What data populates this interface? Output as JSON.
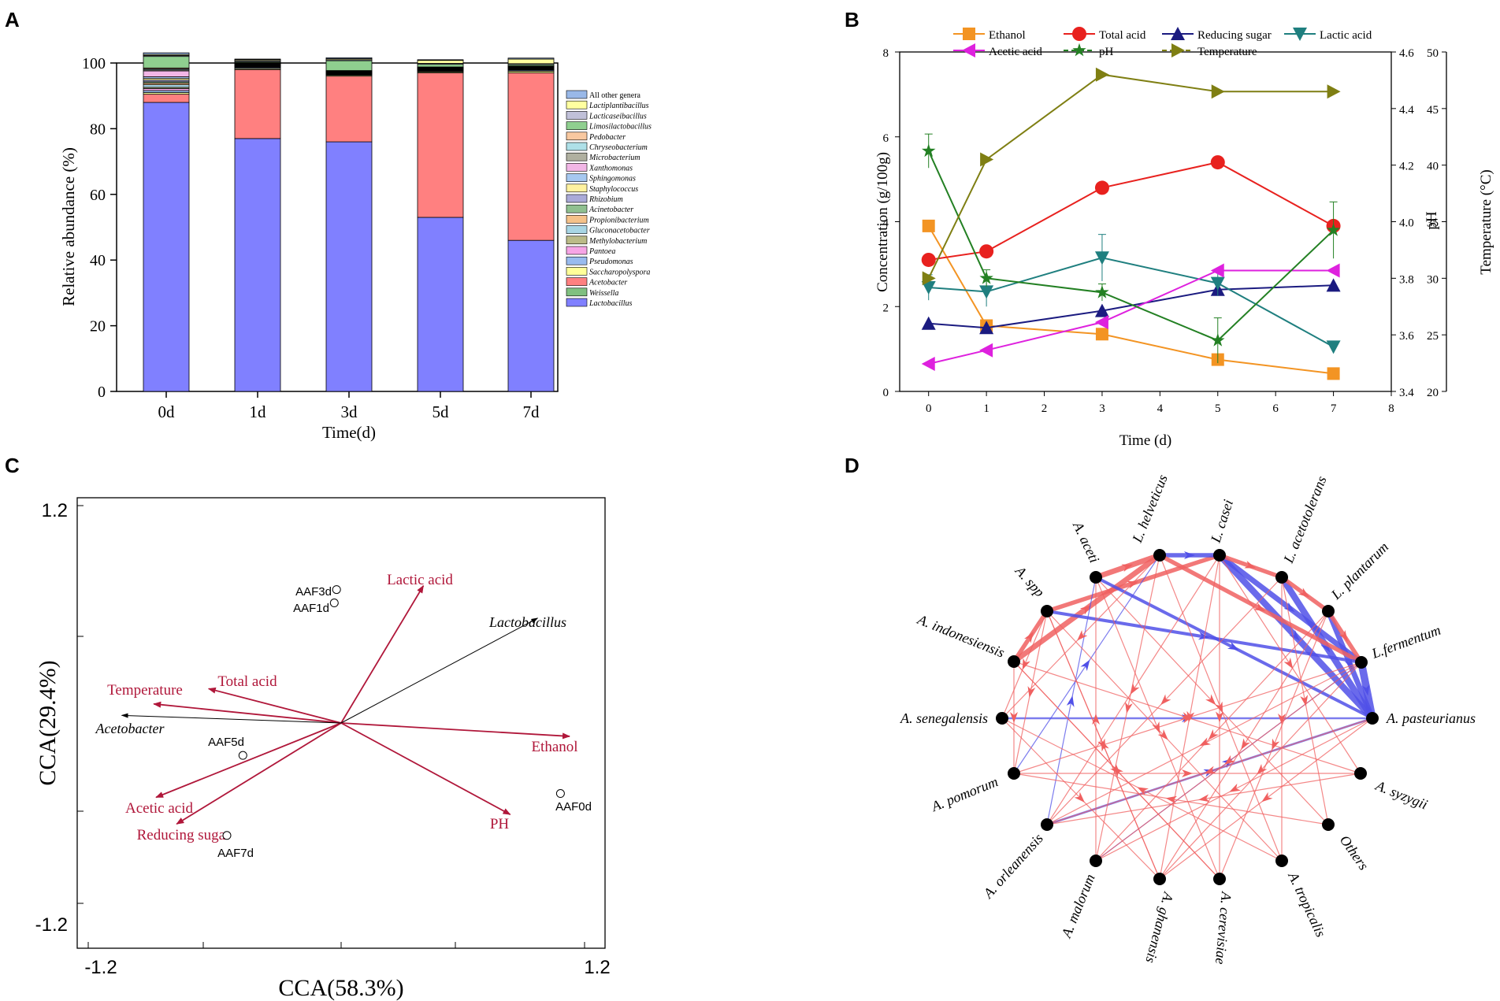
{
  "panels": {
    "a": "A",
    "b": "B",
    "c": "C",
    "d": "D"
  },
  "colors": {
    "lactobacillus": "#8080FF",
    "acetobacter": "#FF8080",
    "weissella": "#80C080",
    "ethanol": "#F39423",
    "total_acid": "#E8211E",
    "reducing_sugar": "#1B1B80",
    "lactic_acid": "#1F7F7F",
    "acetic_acid": "#DE21DE",
    "ph": "#238023",
    "temperature": "#7F7F13",
    "cca_env": "#B0173A",
    "net_pos": "#F06060",
    "net_neg": "#5050E8"
  },
  "chart_data": [
    {
      "id": "A",
      "type": "bar",
      "stacked": true,
      "categories": [
        "0d",
        "1d",
        "3d",
        "5d",
        "7d"
      ],
      "xlabel": "Time(d)",
      "ylabel": "Relative abundance (%)",
      "ylim": [
        0,
        100
      ],
      "yticks": [
        "0",
        "20",
        "40",
        "60",
        "80",
        "100"
      ],
      "series": [
        {
          "name": "Lactobacillus",
          "color": "#8080FF",
          "values": [
            88,
            77,
            76,
            53,
            46
          ]
        },
        {
          "name": "Weissella",
          "color": "#80C080",
          "values": [
            0,
            0,
            0,
            0,
            0
          ]
        },
        {
          "name": "Acetobacter",
          "color": "#FF8080",
          "values": [
            2.5,
            21,
            20,
            44,
            51
          ]
        },
        {
          "name": "Saccharopolyspora",
          "color": "#FFFF99",
          "values": [
            0.5,
            0.3,
            0.3,
            0.3,
            0.5
          ]
        },
        {
          "name": "Pseudomonas",
          "color": "#99BBEE",
          "values": [
            0.6,
            0.3,
            0.2,
            0.2,
            0.3
          ]
        },
        {
          "name": "Pantoea",
          "color": "#F6A5E5",
          "values": [
            0.6,
            0.2,
            0.1,
            0.1,
            0.1
          ]
        },
        {
          "name": "Methylobacterium",
          "color": "#BBBB88",
          "values": [
            0.4,
            0.1,
            0.1,
            0.1,
            0.1
          ]
        },
        {
          "name": "Gluconacetobacter",
          "color": "#A9D6E5",
          "values": [
            0.8,
            0.2,
            0.1,
            0.2,
            0.2
          ]
        },
        {
          "name": "Propionibacterium",
          "color": "#F5C28A",
          "values": [
            0.5,
            0.1,
            0.1,
            0.1,
            0.1
          ]
        },
        {
          "name": "Acinetobacter",
          "color": "#90C090",
          "values": [
            0.4,
            0.1,
            0.1,
            0.1,
            0.1
          ]
        },
        {
          "name": "Rhizobium",
          "color": "#AAAAD8",
          "values": [
            0.5,
            0.2,
            0.1,
            0.1,
            0.1
          ]
        },
        {
          "name": "Staphylococcus",
          "color": "#FFF2A0",
          "values": [
            0.5,
            0.1,
            0.1,
            0.1,
            0.1
          ]
        },
        {
          "name": "Sphingomonas",
          "color": "#A6C8F0",
          "values": [
            0.5,
            0.1,
            0.1,
            0.1,
            0.1
          ]
        },
        {
          "name": "Xanthomonas",
          "color": "#F2B6E6",
          "values": [
            1.8,
            0.1,
            0.1,
            0.1,
            0.1
          ]
        },
        {
          "name": "Microbacterium",
          "color": "#B0B0A0",
          "values": [
            0.3,
            0.1,
            0.1,
            0.1,
            0.1
          ]
        },
        {
          "name": "Chryseobacterium",
          "color": "#AEE0E8",
          "values": [
            0.3,
            0.1,
            0.1,
            0.1,
            0.1
          ]
        },
        {
          "name": "Pedobacter",
          "color": "#F8C8A0",
          "values": [
            0.3,
            0.1,
            0.1,
            0.1,
            0.1
          ]
        },
        {
          "name": "Limosilactobacillus",
          "color": "#8FCF8F",
          "values": [
            3.5,
            0.3,
            3,
            0.8,
            0.4
          ]
        },
        {
          "name": "Lacticaseibacillus",
          "color": "#C0C0D8",
          "values": [
            0.3,
            0.3,
            0.3,
            0.3,
            0.3
          ]
        },
        {
          "name": "Lactiplantibacillus",
          "color": "#FFFFA0",
          "values": [
            0.3,
            0.3,
            0.3,
            0.9,
            1.4
          ]
        },
        {
          "name": "All other genera",
          "color": "#99B8E8",
          "values": [
            0.5,
            0.2,
            0.3,
            0.2,
            0.3
          ]
        }
      ],
      "legend": [
        "All other genera",
        "Lactiplantibacillus",
        "Lacticaseibacillus",
        "Limosilactobacillus",
        "Pedobacter",
        "Chryseobacterium",
        "Microbacterium",
        "Xanthomonas",
        "Sphingomonas",
        "Staphylococcus",
        "Rhizobium",
        "Acinetobacter",
        "Propionibacterium",
        "Gluconacetobacter",
        "Methylobacterium",
        "Pantoea",
        "Pseudomonas",
        "Saccharopolyspora",
        "Acetobacter",
        "Weissella",
        "Lactobacillus"
      ]
    },
    {
      "id": "B",
      "type": "line",
      "xlabel": "Time (d)",
      "ylabel": "Concentration (g/100g)",
      "y2label": "pH",
      "y3label": "Temperature (°C)",
      "xlim": [
        -0.5,
        8
      ],
      "ylim": [
        0,
        8
      ],
      "y2lim": [
        3.4,
        4.6
      ],
      "y3lim": [
        20,
        50
      ],
      "xticks": [
        "0",
        "1",
        "2",
        "3",
        "4",
        "5",
        "6",
        "7",
        "8"
      ],
      "yticks": [
        "0",
        "2",
        "4",
        "6",
        "8"
      ],
      "y2ticks": [
        "3.4",
        "3.6",
        "3.8",
        "4.0",
        "4.2",
        "4.4",
        "4.6"
      ],
      "y3ticks": [
        "20",
        "25",
        "30",
        "35",
        "40",
        "45",
        "50"
      ],
      "x": [
        0,
        1,
        3,
        5,
        7
      ],
      "series": [
        {
          "name": "Ethanol",
          "axis": "left",
          "marker": "square",
          "color": "#F39423",
          "values": [
            3.9,
            1.55,
            1.35,
            0.75,
            0.42
          ]
        },
        {
          "name": "Total acid",
          "axis": "left",
          "marker": "circle",
          "color": "#E8211E",
          "values": [
            3.1,
            3.3,
            4.8,
            5.4,
            3.9
          ]
        },
        {
          "name": "Reducing sugar",
          "axis": "left",
          "marker": "triangle-up",
          "color": "#1B1B80",
          "values": [
            1.6,
            1.5,
            1.9,
            2.4,
            2.5
          ]
        },
        {
          "name": "Lactic acid",
          "axis": "left",
          "marker": "triangle-down",
          "color": "#1F7F7F",
          "values": [
            2.45,
            2.35,
            3.15,
            2.55,
            1.05
          ],
          "errors": [
            0.3,
            0.35,
            0.55,
            0.3,
            0.1
          ]
        },
        {
          "name": "Acetic acid",
          "axis": "left",
          "marker": "triangle-left",
          "color": "#DE21DE",
          "values": [
            0.65,
            0.97,
            1.63,
            2.85,
            2.85
          ]
        },
        {
          "name": "pH",
          "axis": "right",
          "marker": "star",
          "color": "#238023",
          "values": [
            4.25,
            3.8,
            3.75,
            3.58,
            3.97
          ],
          "errors": [
            0.06,
            0.03,
            0.03,
            0.08,
            0.1
          ]
        },
        {
          "name": "Temperature",
          "axis": "right2",
          "marker": "triangle-right",
          "color": "#7F7F13",
          "values": [
            30,
            40.5,
            48,
            46.5,
            46.5
          ]
        }
      ]
    },
    {
      "id": "C",
      "type": "scatter",
      "subtype": "cca-biplot",
      "xlabel": "CCA(58.3%)",
      "ylabel": "CCA(29.4%)",
      "xlim": [
        -1.2,
        1.2
      ],
      "ylim": [
        -1.2,
        1.2
      ],
      "xtick_labels": [
        "-1.2",
        "1.2"
      ],
      "ytick_labels": [
        "1.2",
        "-1.2"
      ],
      "env_vectors": [
        {
          "name": "Lactic acid",
          "x": 0.36,
          "y": 0.72
        },
        {
          "name": "Temperature",
          "x": -0.82,
          "y": 0.1
        },
        {
          "name": "Total acid",
          "x": -0.58,
          "y": 0.18
        },
        {
          "name": "Ethanol",
          "x": 1.0,
          "y": -0.07
        },
        {
          "name": "PH",
          "x": 0.74,
          "y": -0.48
        },
        {
          "name": "Acetic acid",
          "x": -0.81,
          "y": -0.39
        },
        {
          "name": "Reducing sugar",
          "x": -0.72,
          "y": -0.53
        }
      ],
      "species_vectors": [
        {
          "name": "Lactobacillus",
          "x": 0.86,
          "y": 0.55
        },
        {
          "name": "Acetobacter",
          "x": -0.96,
          "y": 0.04
        }
      ],
      "samples": [
        {
          "name": "AAF3d",
          "x": -0.02,
          "y": 0.7
        },
        {
          "name": "AAF1d",
          "x": -0.03,
          "y": 0.63
        },
        {
          "name": "AAF5d",
          "x": -0.43,
          "y": -0.17
        },
        {
          "name": "AAF0d",
          "x": 0.96,
          "y": -0.37
        },
        {
          "name": "AAF7d",
          "x": -0.5,
          "y": -0.59
        }
      ]
    },
    {
      "id": "D",
      "type": "network",
      "nodes": [
        "L. helveticus",
        "L. casei",
        "L. acetotolerans",
        "L. plantarum",
        "L.fermentum",
        "A. pasteurianus",
        "A. syzygii",
        "Others",
        "A. tropicalis",
        "A. cerevisiae",
        "A. ghanensis",
        "A. malorum",
        "A. orleanensis",
        "A. pomorum",
        "A. senegalensis",
        "A. indonesiensis",
        "A. spp",
        "A. aceti"
      ],
      "edges": [
        {
          "from": "A. aceti",
          "to": "L. helveticus",
          "sign": "pos",
          "weight": 5
        },
        {
          "from": "A. spp",
          "to": "L. casei",
          "sign": "pos",
          "weight": 4
        },
        {
          "from": "A. indonesiensis",
          "to": "L. helveticus",
          "sign": "pos",
          "weight": 5
        },
        {
          "from": "A. indonesiensis",
          "to": "A. spp",
          "sign": "pos",
          "weight": 4
        },
        {
          "from": "L. helveticus",
          "to": "L. casei",
          "sign": "neg",
          "weight": 4
        },
        {
          "from": "L. casei",
          "to": "L.fermentum",
          "sign": "neg",
          "weight": 5
        },
        {
          "from": "L. casei",
          "to": "A. pasteurianus",
          "sign": "neg",
          "weight": 6
        },
        {
          "from": "L. acetotolerans",
          "to": "A. pasteurianus",
          "sign": "neg",
          "weight": 6
        },
        {
          "from": "L. plantarum",
          "to": "A. pasteurianus",
          "sign": "neg",
          "weight": 5
        },
        {
          "from": "L.fermentum",
          "to": "A. pasteurianus",
          "sign": "neg",
          "weight": 7
        },
        {
          "from": "L. casei",
          "to": "L. acetotolerans",
          "sign": "pos",
          "weight": 4
        },
        {
          "from": "L. acetotolerans",
          "to": "L. plantarum",
          "sign": "pos",
          "weight": 4
        },
        {
          "from": "L. plantarum",
          "to": "L.fermentum",
          "sign": "pos",
          "weight": 4
        },
        {
          "from": "L. helveticus",
          "to": "L.fermentum",
          "sign": "pos",
          "weight": 4
        },
        {
          "from": "A. spp",
          "to": "L.fermentum",
          "sign": "neg",
          "weight": 3
        },
        {
          "from": "A. aceti",
          "to": "A. pasteurianus",
          "sign": "neg",
          "weight": 3
        },
        {
          "from": "A. senegalensis",
          "to": "A. pasteurianus",
          "sign": "neg",
          "weight": 2
        },
        {
          "from": "A. orleanensis",
          "to": "A. pasteurianus",
          "sign": "neg",
          "weight": 2
        },
        {
          "from": "A. malorum",
          "to": "L.fermentum",
          "sign": "neg",
          "weight": 1
        },
        {
          "from": "A. pomorum",
          "to": "L. helveticus",
          "sign": "neg",
          "weight": 1
        },
        {
          "from": "A. orleanensis",
          "to": "A. aceti",
          "sign": "neg",
          "weight": 1
        },
        {
          "from": "A. spp",
          "to": "A. pomorum",
          "sign": "pos",
          "weight": 1
        },
        {
          "from": "A. spp",
          "to": "A. senegalensis",
          "sign": "pos",
          "weight": 1
        },
        {
          "from": "A. indonesiensis",
          "to": "A. pomorum",
          "sign": "pos",
          "weight": 1
        },
        {
          "from": "L. casei",
          "to": "A. orleanensis",
          "sign": "pos",
          "weight": 1
        },
        {
          "from": "L. casei",
          "to": "A. ghanensis",
          "sign": "pos",
          "weight": 1
        },
        {
          "from": "L. casei",
          "to": "A. cerevisiae",
          "sign": "pos",
          "weight": 1
        },
        {
          "from": "L. helveticus",
          "to": "A. malorum",
          "sign": "pos",
          "weight": 1
        },
        {
          "from": "L. helveticus",
          "to": "A. tropicalis",
          "sign": "pos",
          "weight": 1
        },
        {
          "from": "A. aceti",
          "to": "A. cerevisiae",
          "sign": "pos",
          "weight": 1
        },
        {
          "from": "A. aceti",
          "to": "Others",
          "sign": "pos",
          "weight": 1
        },
        {
          "from": "A. spp",
          "to": "A. tropicalis",
          "sign": "pos",
          "weight": 1
        },
        {
          "from": "A. spp",
          "to": "A. ghanensis",
          "sign": "pos",
          "weight": 1
        },
        {
          "from": "A. indonesiensis",
          "to": "A. cerevisiae",
          "sign": "pos",
          "weight": 1
        },
        {
          "from": "A. indonesiensis",
          "to": "A. syzygii",
          "sign": "pos",
          "weight": 1
        },
        {
          "from": "A. senegalensis",
          "to": "A. ghanensis",
          "sign": "pos",
          "weight": 1
        },
        {
          "from": "A. pomorum",
          "to": "A. syzygii",
          "sign": "pos",
          "weight": 1
        },
        {
          "from": "A. pomorum",
          "to": "L.fermentum",
          "sign": "pos",
          "weight": 1
        },
        {
          "from": "A. pasteurianus",
          "to": "A. malorum",
          "sign": "pos",
          "weight": 1
        },
        {
          "from": "A. pasteurianus",
          "to": "A. ghanensis",
          "sign": "pos",
          "weight": 1
        },
        {
          "from": "A. pasteurianus",
          "to": "A. orleanensis",
          "sign": "pos",
          "weight": 1
        },
        {
          "from": "L.fermentum",
          "to": "A. ghanensis",
          "sign": "pos",
          "weight": 1
        },
        {
          "from": "L.fermentum",
          "to": "A. malorum",
          "sign": "pos",
          "weight": 1
        },
        {
          "from": "L.fermentum",
          "to": "A. orleanensis",
          "sign": "pos",
          "weight": 1
        },
        {
          "from": "L. plantarum",
          "to": "A. ghanensis",
          "sign": "pos",
          "weight": 1
        },
        {
          "from": "L. plantarum",
          "to": "A. cerevisiae",
          "sign": "pos",
          "weight": 1
        },
        {
          "from": "L. plantarum",
          "to": "A. malorum",
          "sign": "pos",
          "weight": 1
        },
        {
          "from": "L. acetotolerans",
          "to": "A. orleanensis",
          "sign": "pos",
          "weight": 1
        },
        {
          "from": "L. acetotolerans",
          "to": "A. tropicalis",
          "sign": "pos",
          "weight": 1
        },
        {
          "from": "L. acetotolerans",
          "to": "Others",
          "sign": "pos",
          "weight": 1
        },
        {
          "from": "L. casei",
          "to": "A. syzygii",
          "sign": "pos",
          "weight": 1
        },
        {
          "from": "A. malorum",
          "to": "A. aceti",
          "sign": "pos",
          "weight": 1
        },
        {
          "from": "A. ghanensis",
          "to": "A. spp",
          "sign": "pos",
          "weight": 1
        },
        {
          "from": "A. cerevisiae",
          "to": "A. indonesiensis",
          "sign": "pos",
          "weight": 1
        },
        {
          "from": "A. tropicalis",
          "to": "A. senegalensis",
          "sign": "pos",
          "weight": 1
        },
        {
          "from": "Others",
          "to": "A. pomorum",
          "sign": "pos",
          "weight": 1
        },
        {
          "from": "A. syzygii",
          "to": "A. orleanensis",
          "sign": "pos",
          "weight": 1
        },
        {
          "from": "L. helveticus",
          "to": "A. senegalensis",
          "sign": "pos",
          "weight": 1
        }
      ]
    }
  ]
}
